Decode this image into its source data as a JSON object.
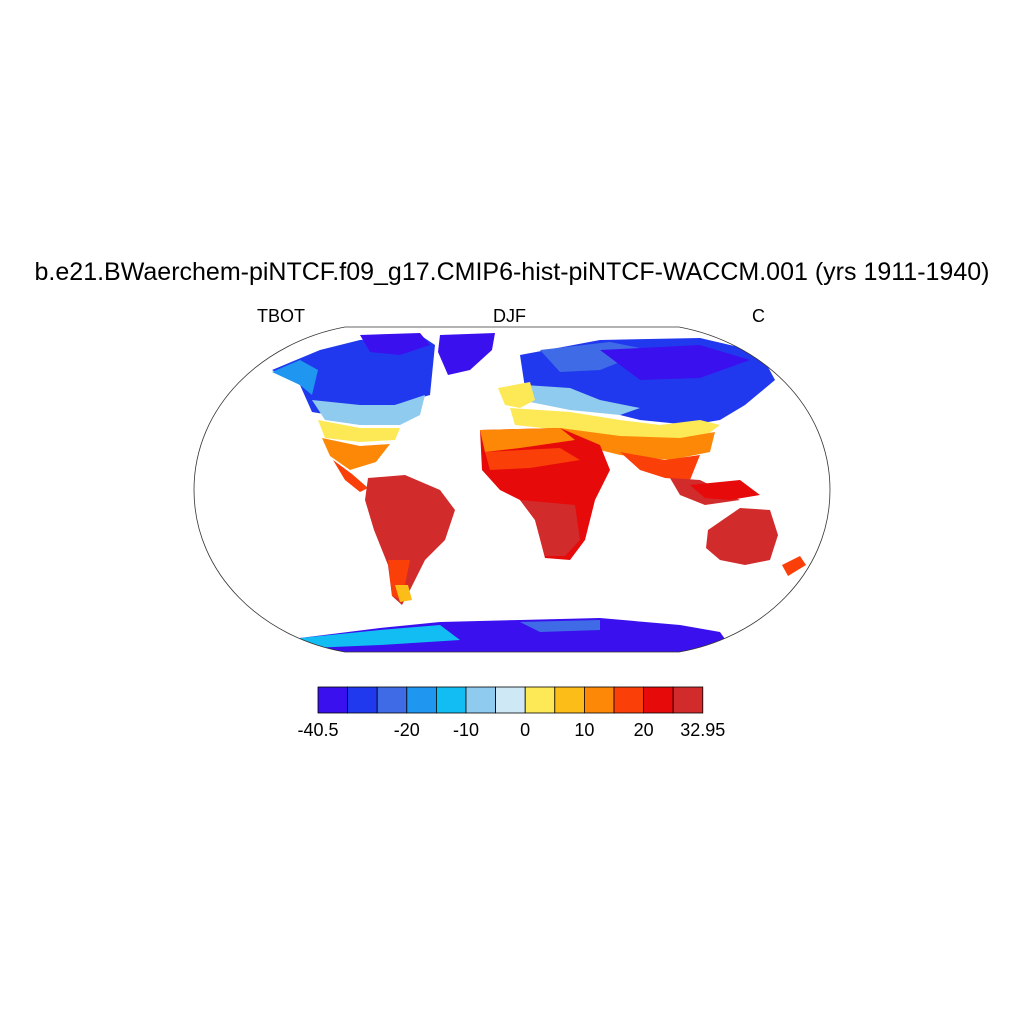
{
  "title": "b.e21.BWaerchem-piNTCF.f09_g17.CMIP6-hist-piNTCF-WACCM.001 (yrs 1911-1940)",
  "left_label": "TBOT",
  "center_label": "DJF",
  "right_label": "C",
  "map": {
    "projection": "Robinson",
    "coastlines": true,
    "field": "TBOT",
    "season": "DJF",
    "units": "C"
  },
  "colorbar": {
    "min": -40.5,
    "max": 32.95,
    "colors": [
      "#3b10ee",
      "#2139ee",
      "#3f6ce6",
      "#1f96ef",
      "#12bdf3",
      "#8ecbee",
      "#cfe8f6",
      "#fde856",
      "#fdbd18",
      "#fd8808",
      "#fa3f08",
      "#e70a0a",
      "#d22b2b"
    ],
    "tick_labels": [
      "-40.5",
      "-20",
      "-10",
      "0",
      "10",
      "20",
      "32.95"
    ],
    "tick_values": [
      -40.5,
      -20,
      -10,
      0,
      10,
      20,
      32.95
    ]
  }
}
